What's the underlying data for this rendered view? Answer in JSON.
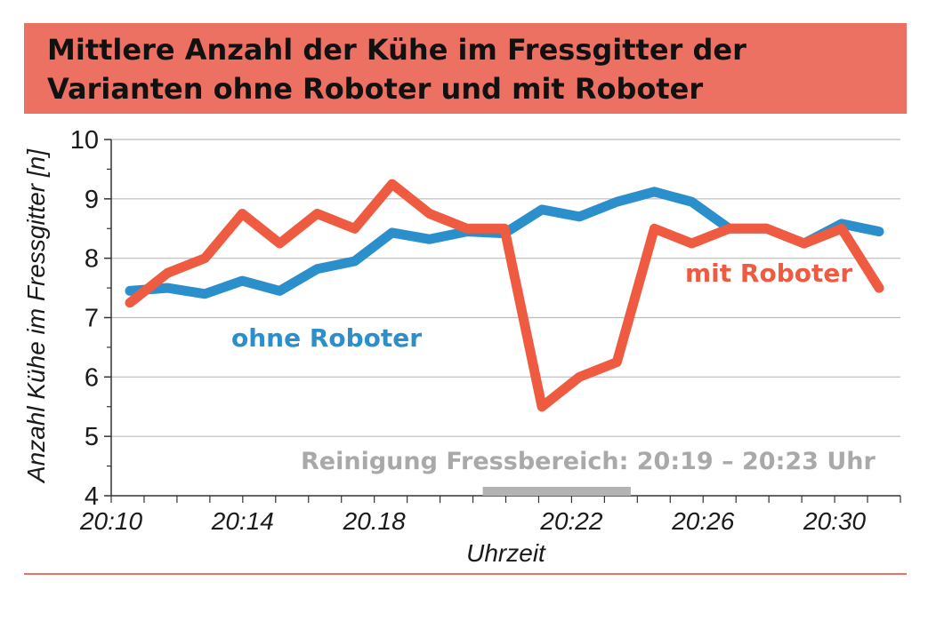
{
  "title": {
    "line1": "Mittlere Anzahl der Kühe im Fressgitter der",
    "line2": "Varianten ohne Roboter und mit Roboter"
  },
  "colors": {
    "banner": "#ec7163",
    "ohne": "#2b8fcc",
    "mit": "#ef5b40",
    "grid": "#bbbbbb",
    "note": "#a9a9a9"
  },
  "chart_data": {
    "type": "line",
    "title": "Mittlere Anzahl der Kühe im Fressgitter der Varianten ohne Roboter und mit Roboter",
    "xlabel": "Uhrzeit",
    "ylabel": "Anzahl Kühe im Fressgitter [n]",
    "ylim": [
      4,
      10
    ],
    "yticks": [
      "4",
      "5",
      "6",
      "7",
      "8",
      "9",
      "10"
    ],
    "xlim": [
      0,
      24
    ],
    "xticks": [
      {
        "label": "20:10",
        "pos": 0
      },
      {
        "label": "20:14",
        "pos": 4
      },
      {
        "label": "20.18",
        "pos": 8
      },
      {
        "label": "20:22",
        "pos": 14
      },
      {
        "label": "20:26",
        "pos": 18
      },
      {
        "label": "20:30",
        "pos": 22
      }
    ],
    "grid": true,
    "series": [
      {
        "name": "ohne Roboter",
        "values": [
          7.45,
          7.5,
          7.4,
          7.62,
          7.45,
          7.82,
          7.95,
          8.43,
          8.32,
          8.45,
          8.42,
          8.82,
          8.7,
          8.95,
          9.12,
          8.95,
          8.5,
          8.5,
          8.25,
          8.58,
          8.45
        ]
      },
      {
        "name": "mit Roboter",
        "values": [
          7.25,
          7.75,
          8.0,
          8.75,
          8.25,
          8.75,
          8.5,
          9.25,
          8.75,
          8.5,
          8.5,
          5.5,
          6.0,
          6.25,
          8.5,
          8.25,
          8.5,
          8.5,
          8.25,
          8.5,
          7.5
        ]
      }
    ],
    "annotations": [
      {
        "text": "Reinigung Fressbereich: 20:19 – 20:23 Uhr",
        "x_start": 11.3,
        "x_end": 15.8
      }
    ]
  }
}
